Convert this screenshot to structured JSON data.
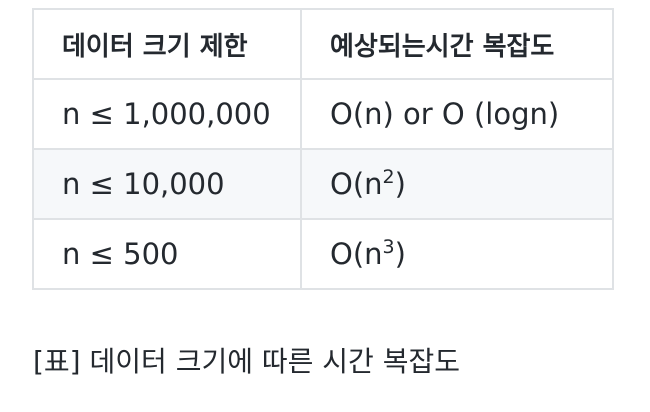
{
  "table": {
    "headers": [
      "데이터 크기 제한",
      "예상되는시간 복잡도"
    ],
    "rows": [
      {
        "size": "n ≤ 1,000,000",
        "complexity_base": "O(n) or O (logn)",
        "complexity_exp": "",
        "complexity_tail": ""
      },
      {
        "size": "n ≤ 10,000",
        "complexity_base": "O(n",
        "complexity_exp": "2",
        "complexity_tail": ")"
      },
      {
        "size": "n ≤ 500",
        "complexity_base": "O(n",
        "complexity_exp": "3",
        "complexity_tail": ")"
      }
    ]
  },
  "caption": "[표] 데이터 크기에 따른 시간 복잡도"
}
